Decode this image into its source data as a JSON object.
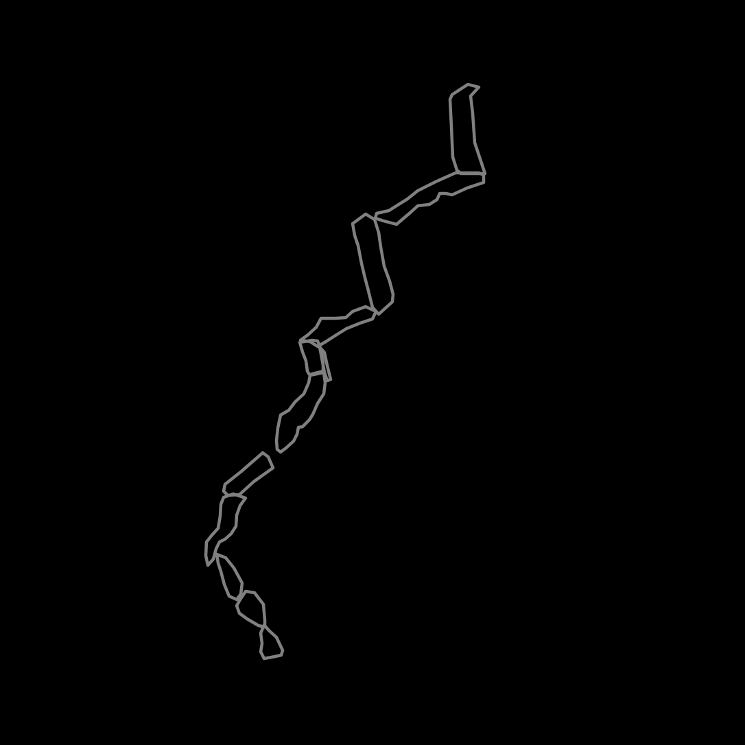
{
  "colors": {
    "background": "#000000",
    "outline": "#808080"
  },
  "figure": {
    "segment_count": 12
  }
}
